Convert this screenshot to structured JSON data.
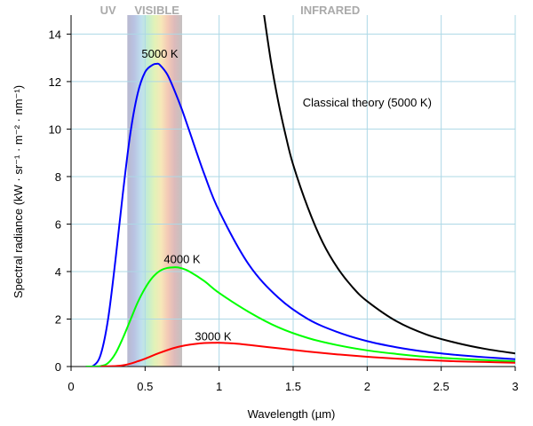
{
  "chart_data": {
    "type": "line",
    "xlabel": "Wavelength (µm)",
    "ylabel": "Spectral radiance (kW · sr⁻¹ · m⁻² · nm⁻¹)",
    "xlim": [
      0,
      3
    ],
    "ylim": [
      0,
      14.8
    ],
    "x_ticks": [
      0,
      0.5,
      1,
      1.5,
      2,
      2.5,
      3
    ],
    "x_tick_labels": [
      "0",
      "0.5",
      "1",
      "1.5",
      "2",
      "2.5",
      "3"
    ],
    "y_ticks": [
      0,
      2,
      4,
      6,
      8,
      10,
      12,
      14
    ],
    "y_tick_labels": [
      "0",
      "2",
      "4",
      "6",
      "8",
      "10",
      "12",
      "14"
    ],
    "grid": true,
    "regions": [
      {
        "label": "UV",
        "x_center": 0.25
      },
      {
        "label": "VISIBLE",
        "x_center": 0.58,
        "band": [
          0.38,
          0.75
        ]
      },
      {
        "label": "INFRARED",
        "x_center": 1.75
      }
    ],
    "series": [
      {
        "name": "5000 K",
        "color": "#0000ff",
        "label_pos": [
          0.6,
          13.0
        ],
        "x": [
          0.1,
          0.15,
          0.2,
          0.25,
          0.3,
          0.35,
          0.4,
          0.45,
          0.5,
          0.55,
          0.58,
          0.6,
          0.65,
          0.7,
          0.75,
          0.8,
          0.9,
          1.0,
          1.2,
          1.4,
          1.6,
          1.8,
          2.0,
          2.2,
          2.4,
          2.6,
          2.8,
          3.0
        ],
        "y": [
          0.0,
          0.03,
          0.5,
          2.0,
          4.5,
          7.3,
          9.8,
          11.5,
          12.4,
          12.7,
          12.75,
          12.7,
          12.3,
          11.6,
          10.8,
          9.9,
          8.1,
          6.55,
          4.3,
          2.9,
          2.0,
          1.45,
          1.07,
          0.81,
          0.62,
          0.49,
          0.39,
          0.31
        ]
      },
      {
        "name": "4000 K",
        "color": "#00ff00",
        "label_pos": [
          0.75,
          4.35
        ],
        "x": [
          0.1,
          0.2,
          0.25,
          0.3,
          0.35,
          0.4,
          0.45,
          0.5,
          0.55,
          0.6,
          0.65,
          0.7,
          0.725,
          0.75,
          0.8,
          0.9,
          1.0,
          1.2,
          1.4,
          1.6,
          1.8,
          2.0,
          2.2,
          2.4,
          2.6,
          2.8,
          3.0
        ],
        "y": [
          0.0,
          0.02,
          0.15,
          0.55,
          1.2,
          1.95,
          2.7,
          3.3,
          3.75,
          4.03,
          4.15,
          4.18,
          4.17,
          4.13,
          4.0,
          3.6,
          3.1,
          2.3,
          1.65,
          1.2,
          0.9,
          0.68,
          0.53,
          0.41,
          0.33,
          0.27,
          0.22
        ]
      },
      {
        "name": "3000 K",
        "color": "#ff0000",
        "label_pos": [
          0.96,
          1.1
        ],
        "x": [
          0.2,
          0.3,
          0.35,
          0.4,
          0.45,
          0.5,
          0.6,
          0.7,
          0.8,
          0.9,
          0.97,
          1.0,
          1.1,
          1.2,
          1.4,
          1.6,
          1.8,
          2.0,
          2.2,
          2.4,
          2.6,
          2.8,
          3.0
        ],
        "y": [
          0.0,
          0.02,
          0.05,
          0.12,
          0.22,
          0.33,
          0.58,
          0.79,
          0.92,
          0.99,
          1.0,
          1.0,
          0.97,
          0.91,
          0.77,
          0.63,
          0.51,
          0.41,
          0.33,
          0.27,
          0.22,
          0.19,
          0.16
        ]
      },
      {
        "name": "Classical theory (5000 K)",
        "color": "#000000",
        "label_pos": [
          2.0,
          10.95
        ],
        "x": [
          1.3,
          1.35,
          1.4,
          1.45,
          1.5,
          1.6,
          1.7,
          1.8,
          1.9,
          2.0,
          2.2,
          2.4,
          2.6,
          2.8,
          3.0
        ],
        "y": [
          14.95,
          12.85,
          11.14,
          9.72,
          8.5,
          6.68,
          5.22,
          4.15,
          3.35,
          2.75,
          1.9,
          1.35,
          1.0,
          0.74,
          0.55
        ]
      }
    ]
  }
}
